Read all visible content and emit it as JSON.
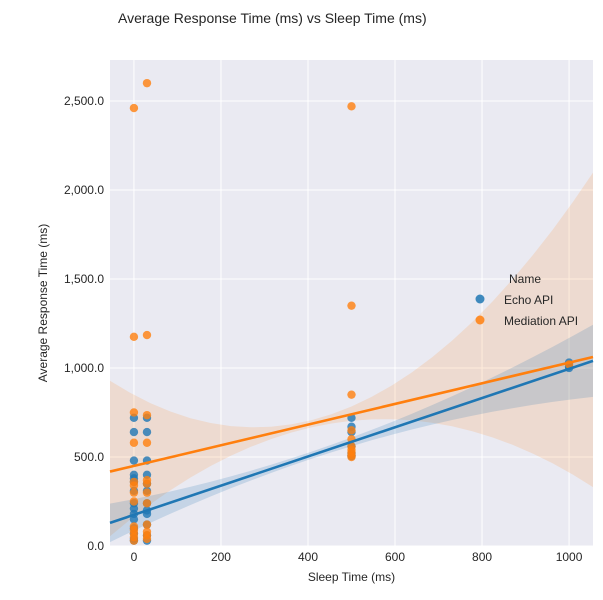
{
  "chart_data": {
    "type": "scatter",
    "title": "Average Response Time (ms) vs Sleep Time (ms)",
    "xlabel": "Sleep Time (ms)",
    "ylabel": "Average Response Time (ms)",
    "xlim": [
      -55,
      1055
    ],
    "ylim": [
      0,
      2730
    ],
    "x_ticks": [
      0,
      200,
      400,
      600,
      800,
      1000
    ],
    "x_tick_labels": [
      "0",
      "200",
      "400",
      "600",
      "800",
      "1000"
    ],
    "y_ticks": [
      0,
      500,
      1000,
      1500,
      2000,
      2500
    ],
    "y_tick_labels": [
      "0.0",
      "500.0",
      "1,000.0",
      "1,500.0",
      "2,000.0",
      "2,500.0"
    ],
    "grid": true,
    "legend": {
      "title": "Name",
      "position": "center-right"
    },
    "series": [
      {
        "name": "Echo API",
        "color": "#1f77b4",
        "points": [
          [
            0,
            720
          ],
          [
            0,
            640
          ],
          [
            0,
            480
          ],
          [
            0,
            400
          ],
          [
            0,
            380
          ],
          [
            0,
            360
          ],
          [
            0,
            310
          ],
          [
            0,
            240
          ],
          [
            0,
            210
          ],
          [
            0,
            180
          ],
          [
            0,
            150
          ],
          [
            0,
            100
          ],
          [
            0,
            70
          ],
          [
            0,
            40
          ],
          [
            0,
            30
          ],
          [
            30,
            720
          ],
          [
            30,
            640
          ],
          [
            30,
            480
          ],
          [
            30,
            400
          ],
          [
            30,
            350
          ],
          [
            30,
            310
          ],
          [
            30,
            240
          ],
          [
            30,
            200
          ],
          [
            30,
            180
          ],
          [
            30,
            120
          ],
          [
            30,
            60
          ],
          [
            30,
            30
          ],
          [
            500,
            720
          ],
          [
            500,
            670
          ],
          [
            500,
            640
          ],
          [
            500,
            560
          ],
          [
            500,
            520
          ],
          [
            500,
            510
          ],
          [
            500,
            505
          ],
          [
            1000,
            1030
          ],
          [
            1000,
            1010
          ],
          [
            1000,
            1000
          ]
        ],
        "fit": {
          "intercept": 175,
          "slope": 0.82
        }
      },
      {
        "name": "Mediation API",
        "color": "#ff7f0e",
        "points": [
          [
            0,
            2460
          ],
          [
            0,
            1175
          ],
          [
            0,
            750
          ],
          [
            0,
            580
          ],
          [
            0,
            360
          ],
          [
            0,
            340
          ],
          [
            0,
            300
          ],
          [
            0,
            250
          ],
          [
            0,
            110
          ],
          [
            0,
            90
          ],
          [
            0,
            70
          ],
          [
            0,
            50
          ],
          [
            0,
            30
          ],
          [
            30,
            2600
          ],
          [
            30,
            1185
          ],
          [
            30,
            735
          ],
          [
            30,
            580
          ],
          [
            30,
            370
          ],
          [
            30,
            350
          ],
          [
            30,
            300
          ],
          [
            30,
            240
          ],
          [
            30,
            120
          ],
          [
            30,
            80
          ],
          [
            30,
            60
          ],
          [
            30,
            40
          ],
          [
            500,
            2470
          ],
          [
            500,
            1350
          ],
          [
            500,
            850
          ],
          [
            500,
            650
          ],
          [
            500,
            600
          ],
          [
            500,
            560
          ],
          [
            500,
            540
          ],
          [
            500,
            525
          ],
          [
            500,
            510
          ],
          [
            500,
            500
          ],
          [
            1000,
            1020
          ]
        ],
        "fit": {
          "intercept": 450,
          "slope": 0.58
        }
      }
    ]
  }
}
